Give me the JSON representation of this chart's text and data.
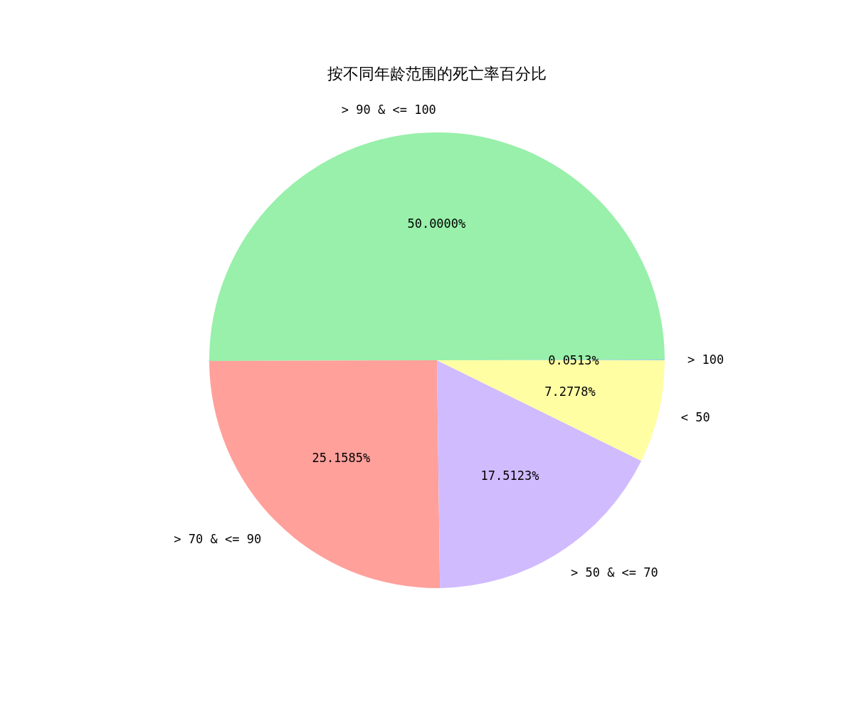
{
  "chart_data": {
    "type": "pie",
    "title": "按不同年龄范围的死亡率百分比",
    "categories": [
      "> 100",
      "> 90 & <= 100",
      "> 70 & <= 90",
      "> 50 & <= 70",
      "< 50"
    ],
    "values": [
      0.0513,
      50.0,
      25.1585,
      17.5123,
      7.2778
    ],
    "value_labels": [
      "0.0513%",
      "50.0000%",
      "25.1585%",
      "17.5123%",
      "7.2778%"
    ],
    "colors": [
      "#a1c9f4",
      "#98f0aa",
      "#ffa09b",
      "#d0bbff",
      "#fffea3"
    ],
    "legend": false
  }
}
